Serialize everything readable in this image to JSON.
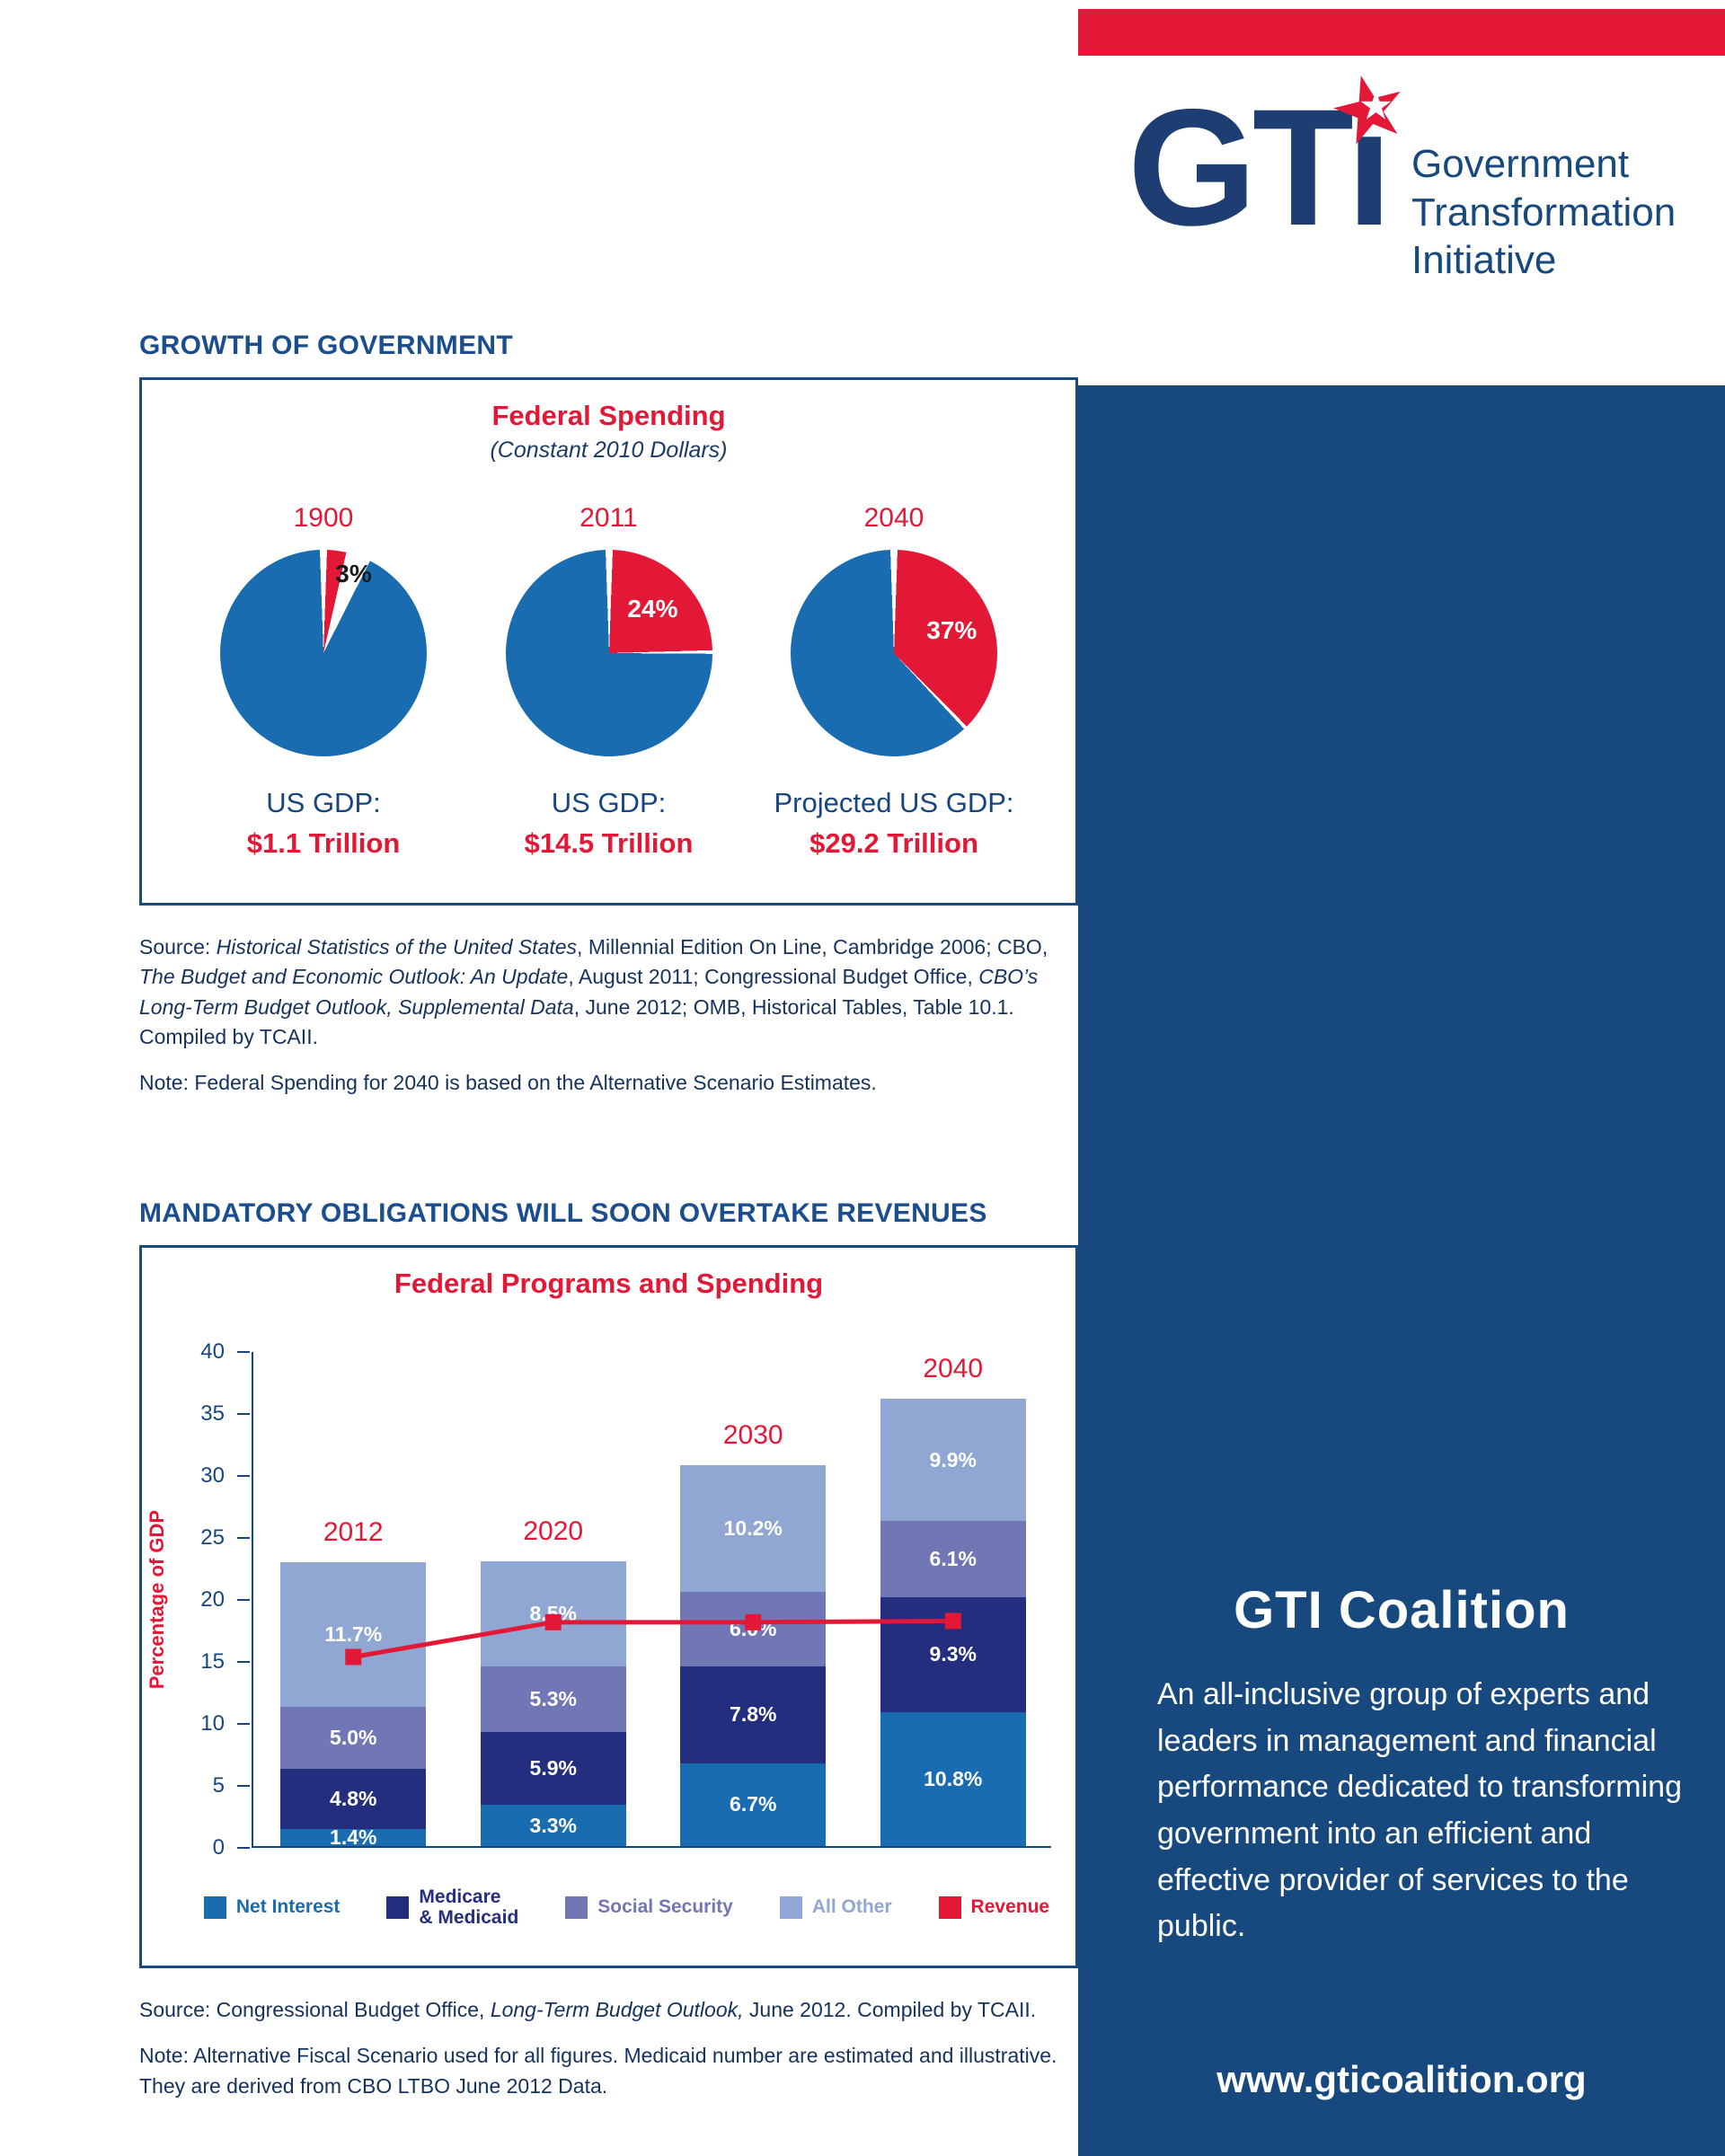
{
  "colors": {
    "brand_red": "#e31837",
    "brand_navy": "#17497e",
    "heading_blue": "#1a4e8f",
    "pie_remainder_blue": "#1a6cb0"
  },
  "logo": {
    "wordmark": "GTi",
    "org_lines": [
      "Government",
      "Transformation",
      "Initiative"
    ]
  },
  "sections": {
    "growth_heading": "GROWTH OF GOVERNMENT",
    "mandatory_heading": "MANDATORY OBLIGATIONS WILL SOON OVERTAKE REVENUES"
  },
  "chart_data": [
    {
      "type": "pie",
      "title": "Federal Spending",
      "subtitle": "(Constant 2010 Dollars)",
      "colors": {
        "slice": "#e31837",
        "remainder": "#1a6cb0"
      },
      "pies": [
        {
          "year": "1900",
          "federal_spending_pct": 3,
          "slice_label": "3%",
          "caption": "US GDP:",
          "value": "$1.1 Trillion"
        },
        {
          "year": "2011",
          "federal_spending_pct": 24,
          "slice_label": "24%",
          "caption": "US GDP:",
          "value": "$14.5 Trillion"
        },
        {
          "year": "2040",
          "federal_spending_pct": 37,
          "slice_label": "37%",
          "caption": "Projected US GDP:",
          "value": "$29.2 Trillion"
        }
      ]
    },
    {
      "type": "bar",
      "stacked": true,
      "title": "Federal Programs and Spending",
      "ylabel": "Percentage of GDP",
      "ylim": [
        0,
        40
      ],
      "ytick_step": 5,
      "grid": false,
      "categories": [
        "2012",
        "2020",
        "2030",
        "2040"
      ],
      "series": [
        {
          "name": "Net Interest",
          "color": "#1a6cb0",
          "values": [
            1.4,
            3.3,
            6.7,
            10.8
          ]
        },
        {
          "name": "Medicare & Medicaid",
          "color": "#242e7e",
          "values": [
            4.8,
            5.9,
            7.8,
            9.3
          ]
        },
        {
          "name": "Social Security",
          "color": "#7177b5",
          "values": [
            5.0,
            5.3,
            6.0,
            6.1
          ]
        },
        {
          "name": "All Other",
          "color": "#90a7d3",
          "values": [
            11.7,
            8.5,
            10.2,
            9.9
          ]
        }
      ],
      "line_series": {
        "name": "Revenue",
        "color": "#e31837",
        "values": [
          15.4,
          18.2,
          18.2,
          18.3
        ]
      },
      "legend": [
        {
          "label": "Net Interest",
          "color": "#1a6cb0"
        },
        {
          "label": "Medicare\n& Medicaid",
          "color": "#242e7e"
        },
        {
          "label": "Social Security",
          "color": "#7177b5"
        },
        {
          "label": "All Other",
          "color": "#90a7d3"
        },
        {
          "label": "Revenue",
          "color": "#e31837"
        }
      ]
    }
  ],
  "sources": {
    "source1_segments": [
      {
        "t": "Source: "
      },
      {
        "t": "Historical Statistics of the United States",
        "i": true
      },
      {
        "t": ", Millennial Edition On Line, Cambridge 2006; CBO, "
      },
      {
        "t": "The Budget and Economic Outlook: An Update",
        "i": true
      },
      {
        "t": ", August 2011; Congressional Budget Office, "
      },
      {
        "t": "CBO’s Long-Term Budget Outlook, Supplemental Data",
        "i": true
      },
      {
        "t": ", June 2012; OMB, Historical Tables, Table 10.1. Compiled by TCAII."
      }
    ],
    "note1": "Note: Federal Spending for 2040 is based on the Alternative Scenario Estimates.",
    "source2_segments": [
      {
        "t": "Source: Congressional Budget Office, "
      },
      {
        "t": "Long-Term Budget Outlook,",
        "i": true
      },
      {
        "t": " June 2012. Compiled by TCAII."
      }
    ],
    "note2": "Note: Alternative Fiscal Scenario used for all figures. Medicaid number are estimated and illustrative.\nThey are derived from CBO LTBO June 2012 Data."
  },
  "panel": {
    "heading": "GTI Coalition",
    "body": "An all-inclusive group of experts and leaders in management and financial performance dedicated to transforming government into an efficient and effective provider of services to the public.",
    "url": "www.gticoalition.org"
  }
}
